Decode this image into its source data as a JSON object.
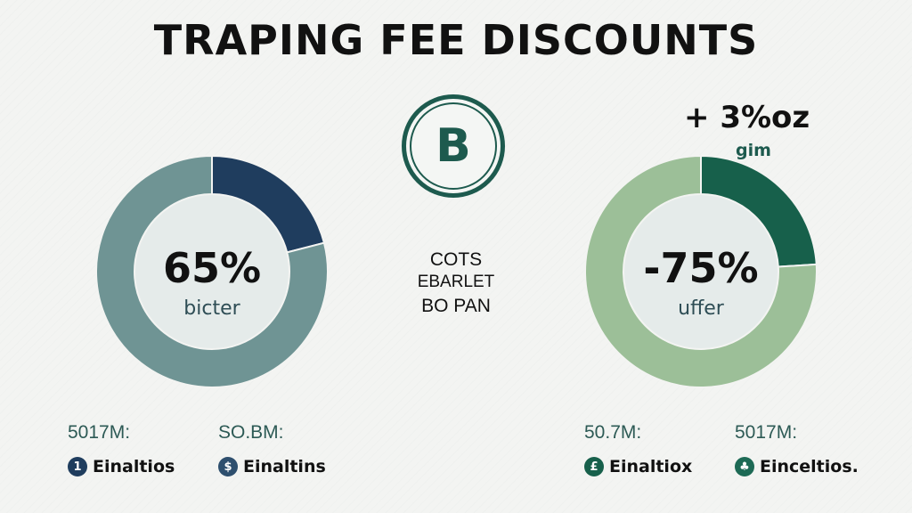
{
  "title": "TRAPING FEE DISCOUNTS",
  "center": {
    "lines": [
      "COTS",
      "EBARLET",
      "BO PAN"
    ],
    "logo_icon": "bitcoin-icon",
    "logo_letter": "B"
  },
  "top_right": {
    "value": "+ 3%oz",
    "label": "gim"
  },
  "colors": {
    "left_main": "#6f9494",
    "left_accent": "#1f3d5e",
    "right_main": "#9cbf98",
    "right_accent": "#17604b",
    "inner": "#e5ebea"
  },
  "chart_data": [
    {
      "type": "pie",
      "donut": true,
      "center_value": "65%",
      "center_label": "bicter",
      "slices": [
        {
          "name": "accent",
          "value": 21
        },
        {
          "name": "main",
          "value": 79
        }
      ]
    },
    {
      "type": "pie",
      "donut": true,
      "center_value": "-75%",
      "center_label": "uffer",
      "slices": [
        {
          "name": "accent",
          "value": 24
        },
        {
          "name": "main",
          "value": 76
        }
      ]
    }
  ],
  "legend": [
    {
      "amount": "5017M:",
      "label": "Einaltios",
      "icon_char": "1"
    },
    {
      "amount": "SO.BM:",
      "label": "Einaltins",
      "icon_char": "$"
    },
    {
      "amount": "50.7M:",
      "label": "Einaltiox",
      "icon_char": "£"
    },
    {
      "amount": "5017M:",
      "label": "Einceltios.",
      "icon_char": "♣"
    }
  ]
}
